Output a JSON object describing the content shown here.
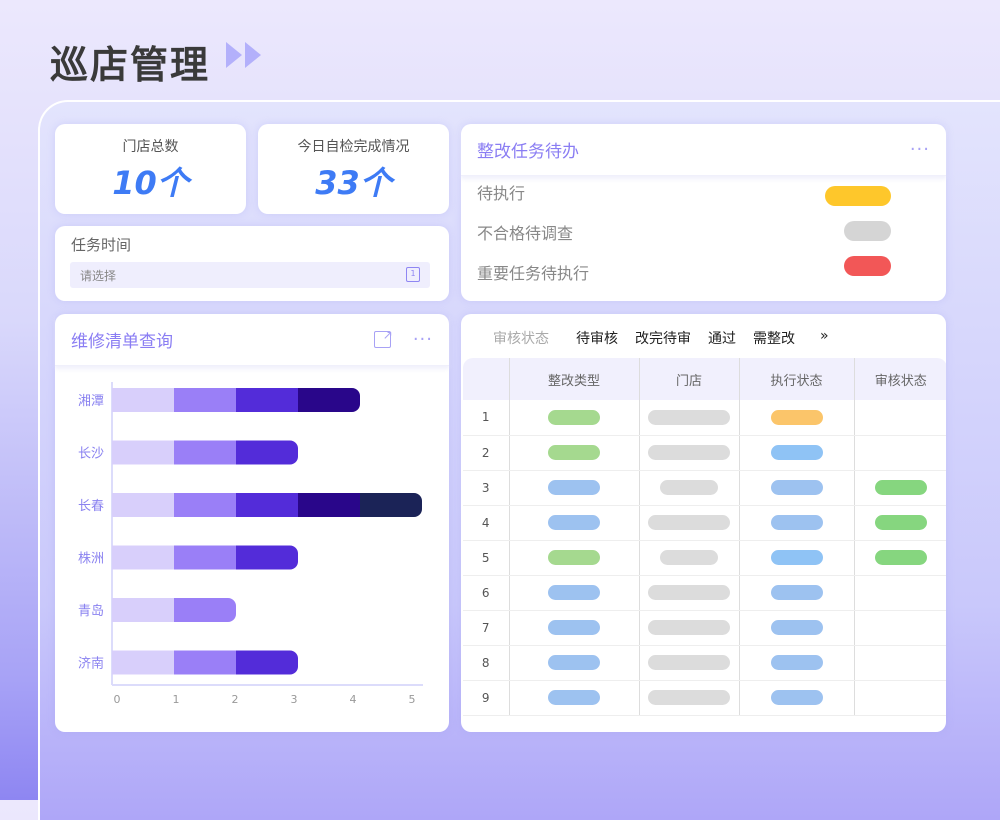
{
  "page": {
    "title": "巡店管理"
  },
  "stats": [
    {
      "label": "门店总数",
      "value": "10个"
    },
    {
      "label": "今日自检完成情况",
      "value": "33个"
    }
  ],
  "task_time": {
    "label": "任务时间",
    "placeholder": "请选择",
    "calendar_icon_text": "1"
  },
  "todo": {
    "title": "整改任务待办",
    "more": "···",
    "items": [
      {
        "label": "待执行",
        "color": "#fec72b"
      },
      {
        "label": "不合格待调查",
        "color": "#d5d5d5"
      },
      {
        "label": "重要任务待执行",
        "color": "#f25757"
      }
    ]
  },
  "repair": {
    "title": "维修清单查询",
    "more": "···"
  },
  "chart_data": {
    "type": "bar",
    "orientation": "horizontal",
    "stacked": true,
    "categories": [
      "湘潭",
      "长沙",
      "长春",
      "株洲",
      "青岛",
      "济南"
    ],
    "series": [
      {
        "values": [
          1,
          1,
          1,
          1,
          1,
          1
        ],
        "color": "#d8cffb"
      },
      {
        "values": [
          1,
          1,
          1,
          1,
          1,
          1
        ],
        "color": "#9a7ff7"
      },
      {
        "values": [
          1,
          1,
          1,
          1,
          0,
          1
        ],
        "color": "#532cd9"
      },
      {
        "values": [
          1,
          0,
          1,
          0,
          0,
          0
        ],
        "color": "#29068a"
      },
      {
        "values": [
          0,
          0,
          1,
          0,
          0,
          0
        ],
        "color": "#1b2357"
      }
    ],
    "xlim": [
      0,
      5
    ],
    "xticks": [
      "0",
      "1",
      "2",
      "3",
      "4",
      "5"
    ],
    "grid": false
  },
  "audit": {
    "filter_label": "审核状态",
    "tabs": [
      "待审核",
      "改完待审",
      "通过",
      "需整改"
    ],
    "more": "»",
    "columns": [
      "",
      "整改类型",
      "门店",
      "执行状态",
      "审核状态"
    ],
    "rows": [
      {
        "no": "1",
        "cells": [
          {
            "color": "#a5d98f",
            "size": "short"
          },
          {
            "color": "#dcdcdc",
            "size": "long"
          },
          {
            "color": "#fbc56a",
            "size": "short"
          },
          null
        ]
      },
      {
        "no": "2",
        "cells": [
          {
            "color": "#a5d98f",
            "size": "short"
          },
          {
            "color": "#dcdcdc",
            "size": "long"
          },
          {
            "color": "#8fc3f5",
            "size": "short"
          },
          null
        ]
      },
      {
        "no": "3",
        "cells": [
          {
            "color": "#9dc2f0",
            "size": "short"
          },
          {
            "color": "#dcdcdc",
            "size": "mid"
          },
          {
            "color": "#9dc2f0",
            "size": "short"
          },
          {
            "color": "#86d67f",
            "size": "short"
          }
        ]
      },
      {
        "no": "4",
        "cells": [
          {
            "color": "#9dc2f0",
            "size": "short"
          },
          {
            "color": "#dcdcdc",
            "size": "long"
          },
          {
            "color": "#9dc2f0",
            "size": "short"
          },
          {
            "color": "#86d67f",
            "size": "short"
          }
        ]
      },
      {
        "no": "5",
        "cells": [
          {
            "color": "#a5d98f",
            "size": "short"
          },
          {
            "color": "#dcdcdc",
            "size": "mid"
          },
          {
            "color": "#8fc3f5",
            "size": "short"
          },
          {
            "color": "#86d67f",
            "size": "short"
          }
        ]
      },
      {
        "no": "6",
        "cells": [
          {
            "color": "#9dc2f0",
            "size": "short"
          },
          {
            "color": "#dcdcdc",
            "size": "long"
          },
          {
            "color": "#9dc2f0",
            "size": "short"
          },
          null
        ]
      },
      {
        "no": "7",
        "cells": [
          {
            "color": "#9dc2f0",
            "size": "short"
          },
          {
            "color": "#dcdcdc",
            "size": "long"
          },
          {
            "color": "#9dc2f0",
            "size": "short"
          },
          null
        ]
      },
      {
        "no": "8",
        "cells": [
          {
            "color": "#9dc2f0",
            "size": "short"
          },
          {
            "color": "#dcdcdc",
            "size": "long"
          },
          {
            "color": "#9dc2f0",
            "size": "short"
          },
          null
        ]
      },
      {
        "no": "9",
        "cells": [
          {
            "color": "#9dc2f0",
            "size": "short"
          },
          {
            "color": "#dcdcdc",
            "size": "long"
          },
          {
            "color": "#9dc2f0",
            "size": "short"
          },
          null
        ]
      }
    ]
  }
}
